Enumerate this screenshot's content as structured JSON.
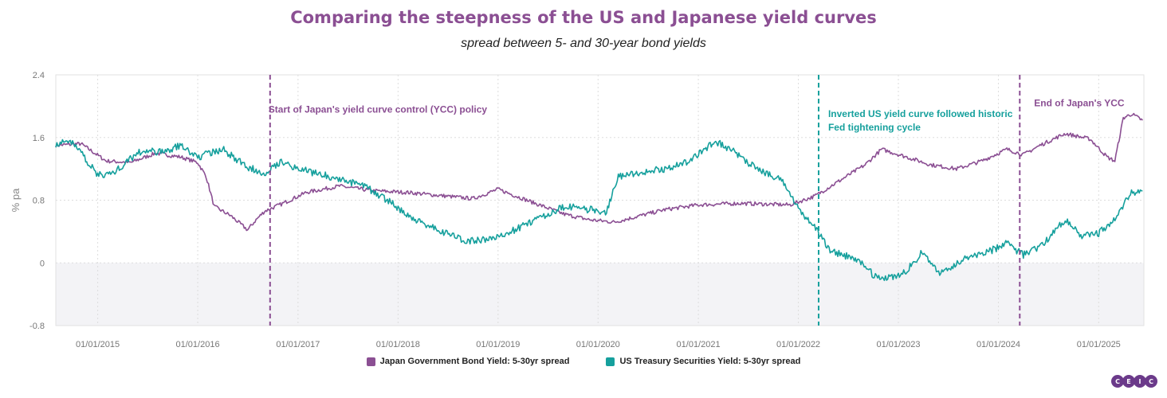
{
  "colors": {
    "jgb": "#8b4f93",
    "ust": "#16a09d",
    "title": "#8b4f93",
    "negative_band": "#f3f3f6",
    "grid": "#dddddd",
    "logo": "#6b3a8a"
  },
  "chart_data": {
    "type": "line",
    "title": "Comparing the steepness of the US and Japanese yield curves",
    "subtitle": "spread between 5- and 30-year bond yields",
    "ylabel": "% pa",
    "xlabel": "",
    "ylim": [
      -0.8,
      2.4
    ],
    "yticks": [
      "2.4",
      "1.6",
      "0.8",
      "0",
      "-0.8"
    ],
    "ytick_values": [
      2.4,
      1.6,
      0.8,
      0,
      -0.8
    ],
    "xlim": [
      "2014-08-01",
      "2025-06-15"
    ],
    "xticks": [
      "01/01/2015",
      "01/01/2016",
      "01/01/2017",
      "01/01/2018",
      "01/01/2019",
      "01/01/2020",
      "01/01/2021",
      "01/01/2022",
      "01/01/2023",
      "01/01/2024",
      "01/01/2025"
    ],
    "xtick_dates": [
      "2015-01-01",
      "2016-01-01",
      "2017-01-01",
      "2018-01-01",
      "2019-01-01",
      "2020-01-01",
      "2021-01-01",
      "2022-01-01",
      "2023-01-01",
      "2024-01-01",
      "2025-01-01"
    ],
    "grid": true,
    "legend_position": "bottom",
    "series": [
      {
        "name": "Japan Government Bond Yield: 5-30yr spread",
        "color": "#8b4f93",
        "points": [
          [
            "2014-08-01",
            1.5
          ],
          [
            "2014-11-01",
            1.52
          ],
          [
            "2015-02-01",
            1.3
          ],
          [
            "2015-05-01",
            1.28
          ],
          [
            "2015-08-01",
            1.4
          ],
          [
            "2015-11-01",
            1.35
          ],
          [
            "2016-01-01",
            1.28
          ],
          [
            "2016-02-01",
            1.1
          ],
          [
            "2016-03-01",
            0.72
          ],
          [
            "2016-05-01",
            0.6
          ],
          [
            "2016-07-01",
            0.42
          ],
          [
            "2016-08-01",
            0.55
          ],
          [
            "2016-09-01",
            0.66
          ],
          [
            "2016-11-01",
            0.75
          ],
          [
            "2017-02-01",
            0.9
          ],
          [
            "2017-06-01",
            0.98
          ],
          [
            "2017-10-01",
            0.92
          ],
          [
            "2018-02-01",
            0.9
          ],
          [
            "2018-06-01",
            0.86
          ],
          [
            "2018-10-01",
            0.82
          ],
          [
            "2019-01-01",
            0.94
          ],
          [
            "2019-05-01",
            0.78
          ],
          [
            "2019-09-01",
            0.62
          ],
          [
            "2019-12-01",
            0.55
          ],
          [
            "2020-03-01",
            0.52
          ],
          [
            "2020-06-01",
            0.6
          ],
          [
            "2020-09-01",
            0.68
          ],
          [
            "2021-01-01",
            0.74
          ],
          [
            "2021-06-01",
            0.76
          ],
          [
            "2021-12-01",
            0.74
          ],
          [
            "2022-03-01",
            0.85
          ],
          [
            "2022-06-01",
            1.05
          ],
          [
            "2022-09-01",
            1.25
          ],
          [
            "2022-11-01",
            1.45
          ],
          [
            "2023-02-01",
            1.35
          ],
          [
            "2023-05-01",
            1.25
          ],
          [
            "2023-08-01",
            1.2
          ],
          [
            "2023-11-01",
            1.3
          ],
          [
            "2024-02-01",
            1.45
          ],
          [
            "2024-04-01",
            1.38
          ],
          [
            "2024-06-01",
            1.5
          ],
          [
            "2024-09-01",
            1.65
          ],
          [
            "2024-12-01",
            1.58
          ],
          [
            "2025-02-01",
            1.35
          ],
          [
            "2025-03-01",
            1.3
          ],
          [
            "2025-04-01",
            1.85
          ],
          [
            "2025-05-01",
            1.9
          ],
          [
            "2025-06-10",
            1.82
          ]
        ]
      },
      {
        "name": "US Treasury Securities Yield: 5-30yr spread",
        "color": "#16a09d",
        "points": [
          [
            "2014-08-01",
            1.52
          ],
          [
            "2014-10-01",
            1.55
          ],
          [
            "2015-01-01",
            1.12
          ],
          [
            "2015-03-01",
            1.15
          ],
          [
            "2015-06-01",
            1.42
          ],
          [
            "2015-09-01",
            1.42
          ],
          [
            "2015-11-01",
            1.5
          ],
          [
            "2016-01-01",
            1.35
          ],
          [
            "2016-04-01",
            1.45
          ],
          [
            "2016-07-01",
            1.22
          ],
          [
            "2016-09-01",
            1.15
          ],
          [
            "2016-11-01",
            1.3
          ],
          [
            "2017-01-01",
            1.2
          ],
          [
            "2017-05-01",
            1.1
          ],
          [
            "2017-09-01",
            0.98
          ],
          [
            "2017-12-01",
            0.78
          ],
          [
            "2018-03-01",
            0.55
          ],
          [
            "2018-06-01",
            0.42
          ],
          [
            "2018-09-01",
            0.28
          ],
          [
            "2018-12-01",
            0.3
          ],
          [
            "2019-03-01",
            0.42
          ],
          [
            "2019-06-01",
            0.58
          ],
          [
            "2019-09-01",
            0.72
          ],
          [
            "2019-12-01",
            0.68
          ],
          [
            "2020-02-01",
            0.65
          ],
          [
            "2020-03-15",
            1.1
          ],
          [
            "2020-06-01",
            1.15
          ],
          [
            "2020-09-01",
            1.2
          ],
          [
            "2020-12-01",
            1.3
          ],
          [
            "2021-03-01",
            1.55
          ],
          [
            "2021-05-01",
            1.45
          ],
          [
            "2021-08-01",
            1.2
          ],
          [
            "2021-11-01",
            1.05
          ],
          [
            "2022-01-01",
            0.7
          ],
          [
            "2022-03-01",
            0.45
          ],
          [
            "2022-05-01",
            0.15
          ],
          [
            "2022-08-01",
            0.05
          ],
          [
            "2022-10-01",
            -0.15
          ],
          [
            "2022-12-01",
            -0.2
          ],
          [
            "2023-02-01",
            -0.1
          ],
          [
            "2023-04-01",
            0.15
          ],
          [
            "2023-06-01",
            -0.15
          ],
          [
            "2023-09-01",
            0.05
          ],
          [
            "2023-12-01",
            0.15
          ],
          [
            "2024-02-01",
            0.25
          ],
          [
            "2024-04-01",
            0.1
          ],
          [
            "2024-06-01",
            0.2
          ],
          [
            "2024-09-01",
            0.55
          ],
          [
            "2024-11-01",
            0.35
          ],
          [
            "2025-01-01",
            0.38
          ],
          [
            "2025-03-01",
            0.55
          ],
          [
            "2025-05-01",
            0.9
          ],
          [
            "2025-06-10",
            0.92
          ]
        ]
      }
    ],
    "annotations": [
      {
        "date": "2016-09-21",
        "color": "#8b4f93",
        "lines": [
          "Start of Japan's yield curve control (YCC) policy"
        ],
        "align": "start",
        "y": 1.92
      },
      {
        "date": "2022-03-16",
        "color": "#16a09d",
        "lines": [
          "Inverted US yield curve followed historic",
          "Fed tightening cycle"
        ],
        "align": "start",
        "y": 1.86
      },
      {
        "date": "2024-03-19",
        "color": "#8b4f93",
        "lines": [
          "End of Japan's YCC"
        ],
        "align": "start",
        "y": 2.0
      }
    ]
  },
  "logo": {
    "letters": [
      "C",
      "E",
      "I",
      "C"
    ]
  }
}
